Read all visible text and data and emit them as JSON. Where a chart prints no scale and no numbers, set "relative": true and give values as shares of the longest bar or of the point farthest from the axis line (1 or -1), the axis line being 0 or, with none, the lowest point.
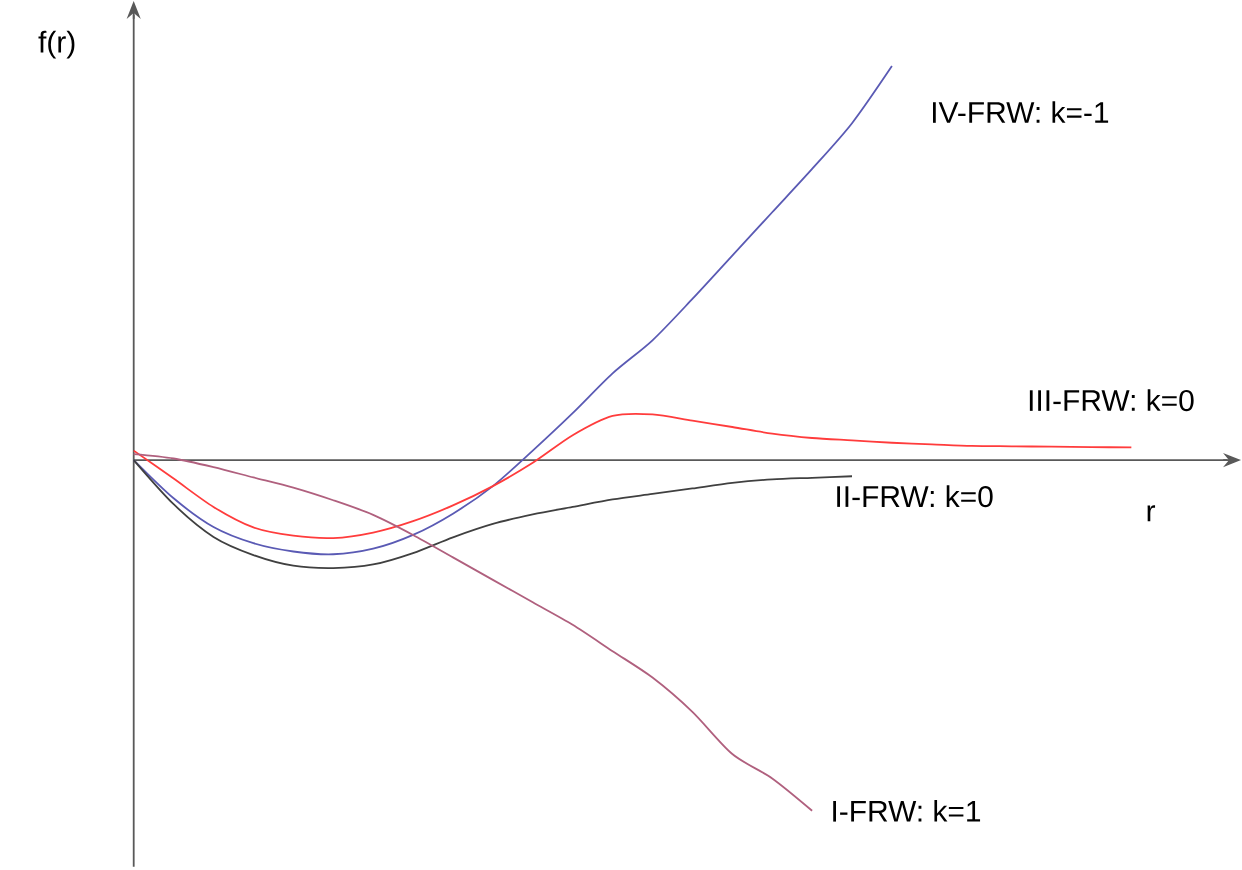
{
  "chart_data": {
    "type": "line",
    "relative": true,
    "xlabel": "r",
    "ylabel": "f(r)",
    "categories": [
      null,
      null,
      null,
      null,
      null,
      null,
      null,
      null,
      null,
      null,
      null,
      null,
      null,
      null,
      null,
      null,
      null,
      null,
      null,
      null,
      null,
      null,
      null,
      null,
      null,
      null,
      null,
      null
    ],
    "series": [
      {
        "name": "IV-FRW: k=-1",
        "color": "#5a5ab4",
        "values": [
          0,
          -0.097,
          -0.17,
          -0.211,
          -0.232,
          -0.239,
          -0.225,
          -0.19,
          -0.136,
          -0.066,
          0.024,
          0.119,
          0.22,
          0.304,
          0.409,
          0.519,
          0.629,
          0.739,
          0.855,
          1,
          null,
          null,
          null,
          null,
          null,
          null,
          null,
          null
        ]
      },
      {
        "name": "III-FRW: k=0",
        "color": "#ff3c3c",
        "values": [
          0.024,
          -0.047,
          -0.119,
          -0.171,
          -0.192,
          -0.198,
          -0.184,
          -0.155,
          -0.115,
          -0.066,
          -0.007,
          0.063,
          0.112,
          0.116,
          0.1,
          0.084,
          0.067,
          0.056,
          0.05,
          0.044,
          0.04,
          0.036,
          0.035,
          0.034,
          0.033,
          0.032,
          null,
          null
        ]
      },
      {
        "name": "II-FRW: k=0",
        "color": "#404040",
        "values": [
          0,
          -0.112,
          -0.195,
          -0.241,
          -0.268,
          -0.274,
          -0.265,
          -0.236,
          -0.196,
          -0.162,
          -0.138,
          -0.119,
          -0.1,
          -0.086,
          -0.072,
          -0.058,
          -0.049,
          -0.045,
          -0.041,
          null,
          null,
          null,
          null,
          null,
          null,
          null,
          null,
          null
        ]
      },
      {
        "name": "I-FRW: k=1",
        "color": "#b0607e",
        "values": [
          0.015,
          0.004,
          -0.018,
          -0.044,
          -0.07,
          -0.102,
          -0.139,
          -0.19,
          -0.247,
          -0.304,
          -0.361,
          -0.418,
          -0.485,
          -0.552,
          -0.639,
          -0.746,
          -0.808,
          -0.89,
          null,
          null,
          null,
          null,
          null,
          null,
          null,
          null,
          null,
          null
        ]
      }
    ]
  }
}
